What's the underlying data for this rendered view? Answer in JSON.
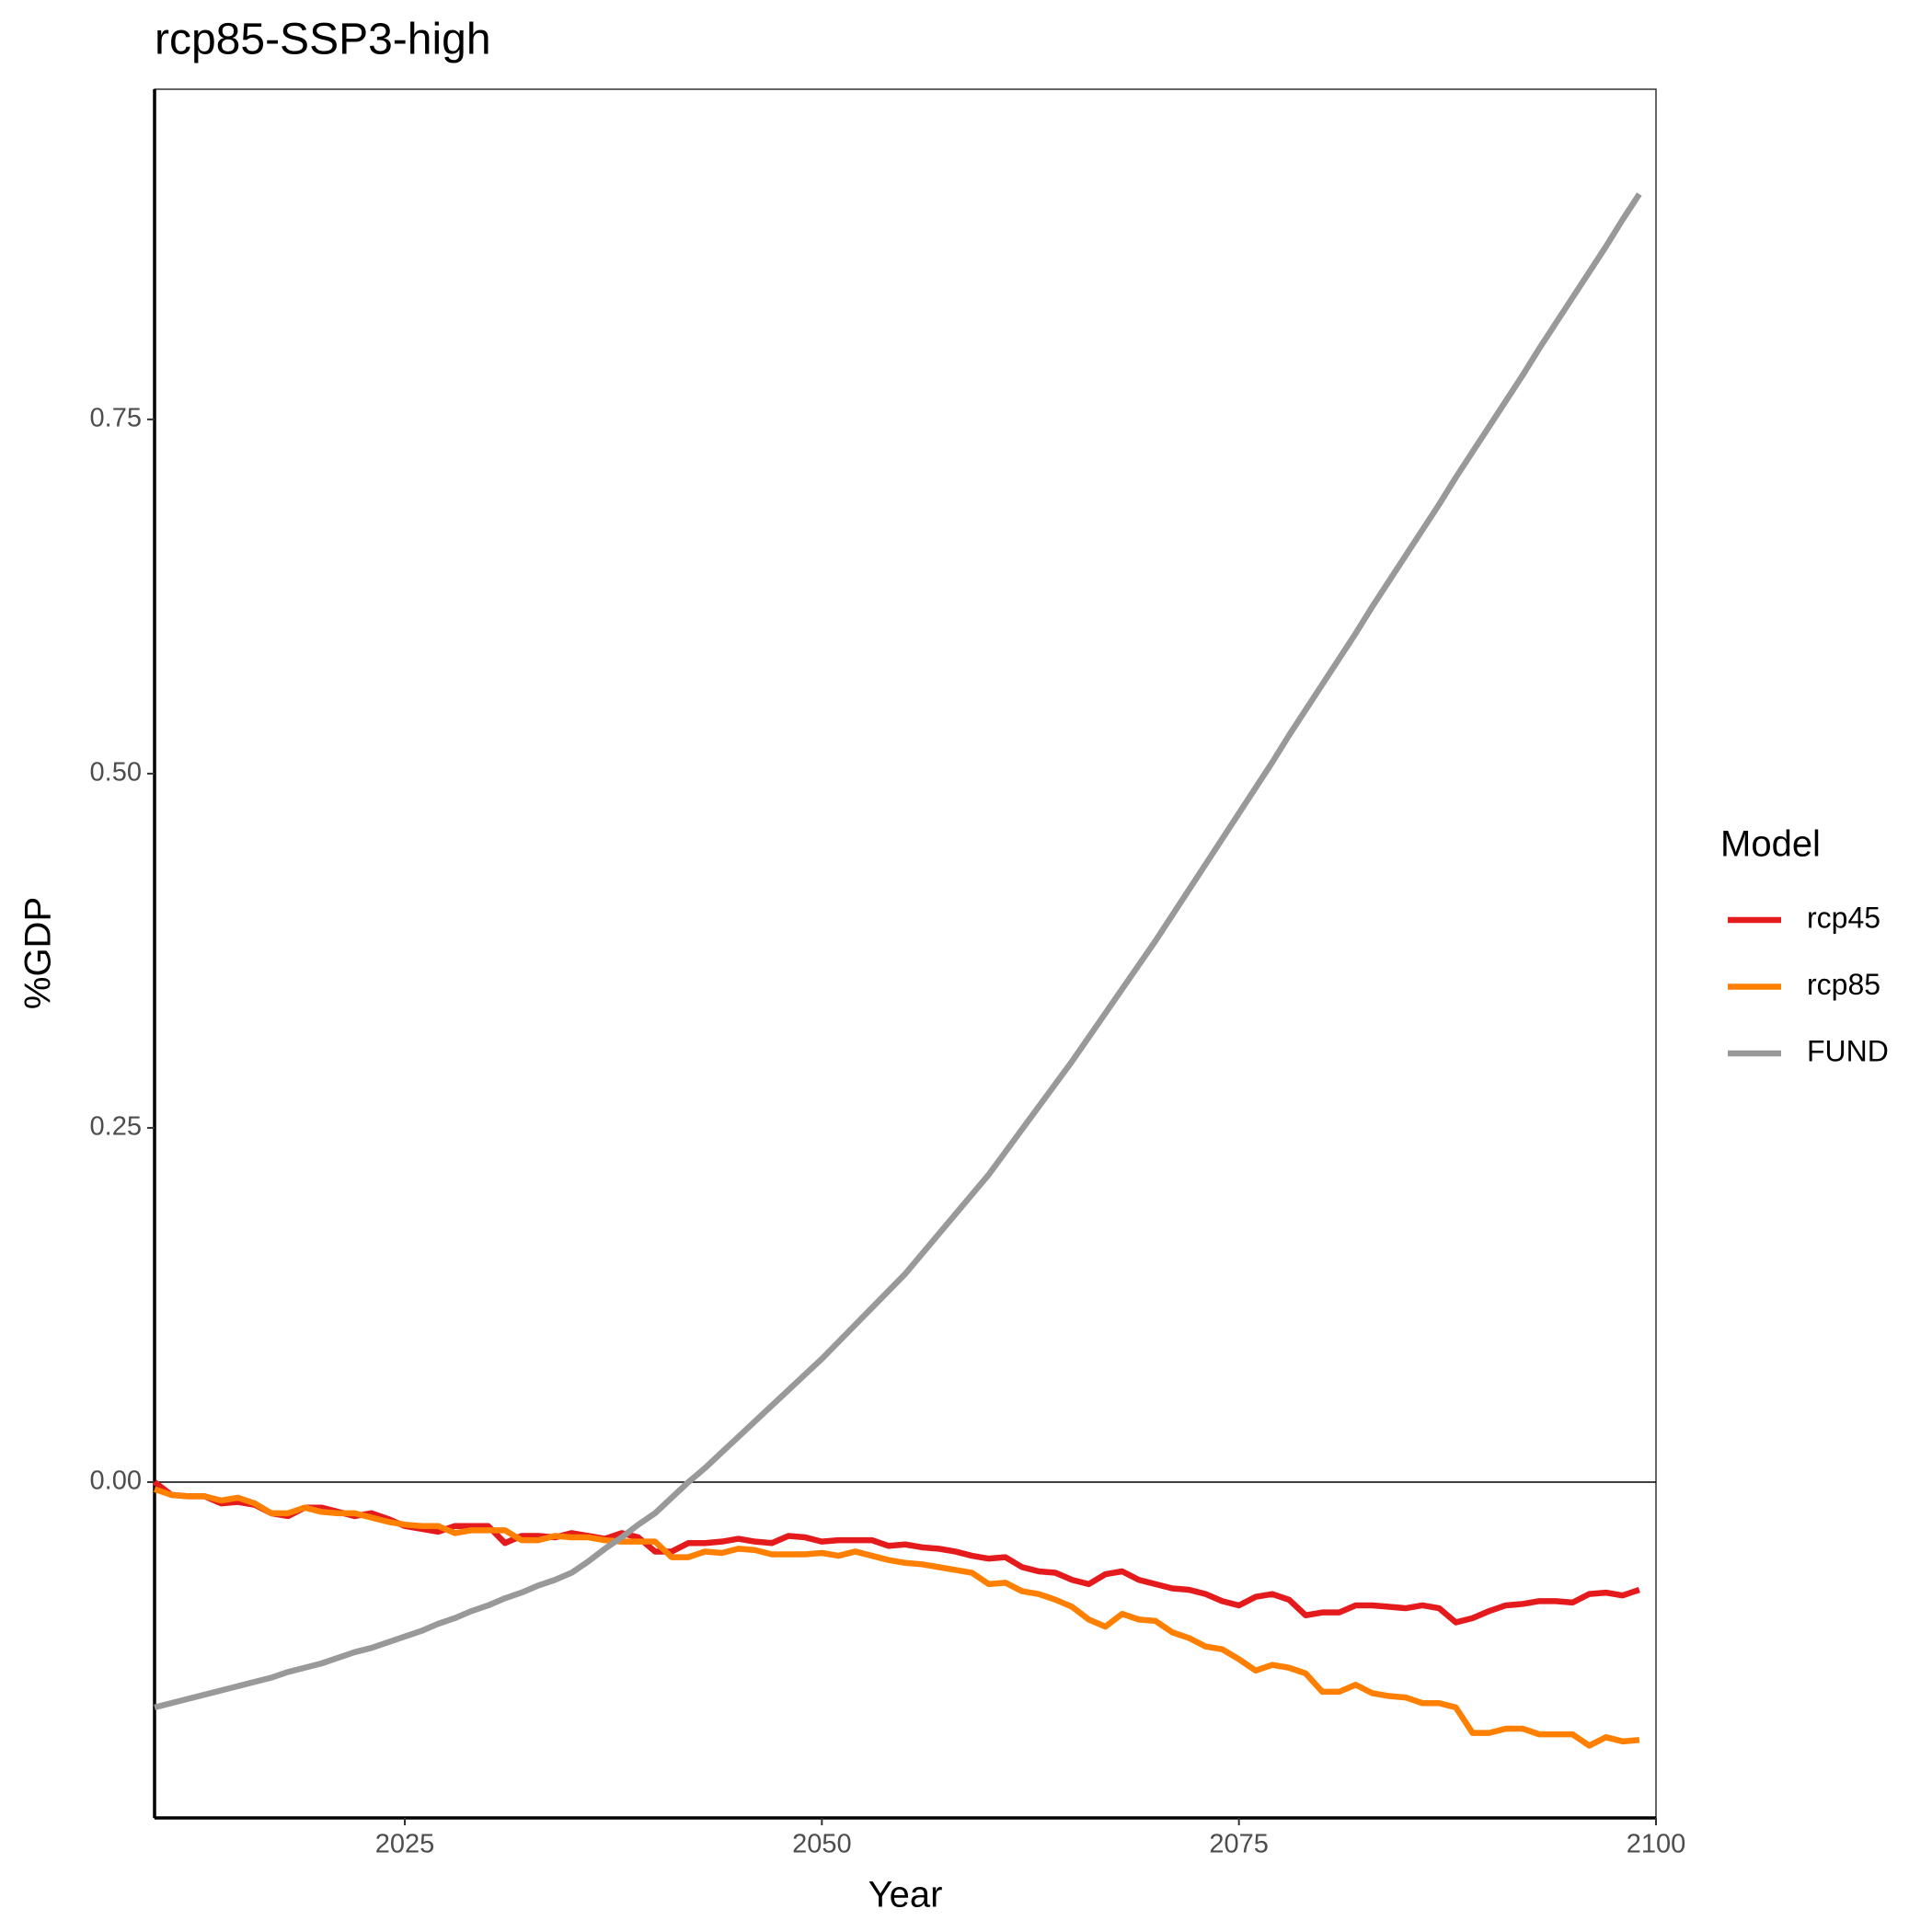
{
  "chart_data": {
    "type": "line",
    "title": "rcp85-SSP3-high",
    "x_label": "Year",
    "y_label": "%GDP",
    "legend_title": "Model",
    "legend_position": "right",
    "grid": false,
    "hline": 0,
    "x": [
      2010,
      2011,
      2012,
      2013,
      2014,
      2015,
      2016,
      2017,
      2018,
      2019,
      2020,
      2021,
      2022,
      2023,
      2024,
      2025,
      2026,
      2027,
      2028,
      2029,
      2030,
      2031,
      2032,
      2033,
      2034,
      2035,
      2036,
      2037,
      2038,
      2039,
      2040,
      2041,
      2042,
      2043,
      2044,
      2045,
      2046,
      2047,
      2048,
      2049,
      2050,
      2051,
      2052,
      2053,
      2054,
      2055,
      2056,
      2057,
      2058,
      2059,
      2060,
      2061,
      2062,
      2063,
      2064,
      2065,
      2066,
      2067,
      2068,
      2069,
      2070,
      2071,
      2072,
      2073,
      2074,
      2075,
      2076,
      2077,
      2078,
      2079,
      2080,
      2081,
      2082,
      2083,
      2084,
      2085,
      2086,
      2087,
      2088,
      2089,
      2090,
      2091,
      2092,
      2093,
      2094,
      2095,
      2096,
      2097,
      2098,
      2099
    ],
    "xlim": [
      2010,
      2100
    ],
    "xticks": [
      2025,
      2050,
      2075,
      2100
    ],
    "ylim": [
      -0.237,
      0.983
    ],
    "yticks": [
      {
        "value": 0,
        "label": "0.00"
      },
      0.25,
      {
        "value": 0.5,
        "label": "0.50"
      },
      0.75
    ],
    "series": [
      {
        "name": "rcp45",
        "color": "#e41a1c",
        "values": [
          0.0,
          -0.009,
          -0.01,
          -0.01,
          -0.015,
          -0.014,
          -0.016,
          -0.022,
          -0.024,
          -0.018,
          -0.018,
          -0.021,
          -0.024,
          -0.022,
          -0.026,
          -0.031,
          -0.033,
          -0.035,
          -0.031,
          -0.031,
          -0.031,
          -0.043,
          -0.038,
          -0.038,
          -0.039,
          -0.036,
          -0.038,
          -0.04,
          -0.036,
          -0.039,
          -0.049,
          -0.049,
          -0.043,
          -0.043,
          -0.042,
          -0.04,
          -0.042,
          -0.043,
          -0.038,
          -0.039,
          -0.042,
          -0.041,
          -0.041,
          -0.041,
          -0.045,
          -0.044,
          -0.046,
          -0.047,
          -0.049,
          -0.052,
          -0.054,
          -0.053,
          -0.06,
          -0.063,
          -0.064,
          -0.069,
          -0.072,
          -0.065,
          -0.063,
          -0.069,
          -0.072,
          -0.075,
          -0.076,
          -0.079,
          -0.084,
          -0.087,
          -0.081,
          -0.079,
          -0.083,
          -0.094,
          -0.092,
          -0.092,
          -0.087,
          -0.087,
          -0.088,
          -0.089,
          -0.087,
          -0.089,
          -0.099,
          -0.096,
          -0.091,
          -0.087,
          -0.086,
          -0.084,
          -0.084,
          -0.085,
          -0.079,
          -0.078,
          -0.08,
          -0.076
        ]
      },
      {
        "name": "rcp85",
        "color": "#ff7f00",
        "values": [
          -0.005,
          -0.009,
          -0.01,
          -0.01,
          -0.013,
          -0.011,
          -0.015,
          -0.022,
          -0.022,
          -0.018,
          -0.021,
          -0.022,
          -0.022,
          -0.025,
          -0.028,
          -0.03,
          -0.031,
          -0.031,
          -0.036,
          -0.034,
          -0.034,
          -0.034,
          -0.041,
          -0.041,
          -0.038,
          -0.039,
          -0.039,
          -0.041,
          -0.042,
          -0.042,
          -0.042,
          -0.053,
          -0.053,
          -0.049,
          -0.05,
          -0.047,
          -0.048,
          -0.051,
          -0.051,
          -0.051,
          -0.05,
          -0.052,
          -0.049,
          -0.052,
          -0.055,
          -0.057,
          -0.058,
          -0.06,
          -0.062,
          -0.064,
          -0.072,
          -0.071,
          -0.077,
          -0.079,
          -0.083,
          -0.088,
          -0.097,
          -0.102,
          -0.093,
          -0.097,
          -0.098,
          -0.106,
          -0.11,
          -0.116,
          -0.118,
          -0.125,
          -0.133,
          -0.129,
          -0.131,
          -0.135,
          -0.148,
          -0.148,
          -0.143,
          -0.149,
          -0.151,
          -0.152,
          -0.156,
          -0.156,
          -0.159,
          -0.177,
          -0.177,
          -0.174,
          -0.174,
          -0.178,
          -0.178,
          -0.178,
          -0.186,
          -0.18,
          -0.183,
          -0.182
        ]
      },
      {
        "name": "FUND",
        "color": "#999999",
        "values": [
          -0.159,
          -0.156,
          -0.153,
          -0.15,
          -0.147,
          -0.144,
          -0.141,
          -0.138,
          -0.134,
          -0.131,
          -0.128,
          -0.124,
          -0.12,
          -0.117,
          -0.113,
          -0.109,
          -0.105,
          -0.1,
          -0.096,
          -0.091,
          -0.087,
          -0.082,
          -0.078,
          -0.073,
          -0.069,
          -0.064,
          -0.056,
          -0.047,
          -0.039,
          -0.03,
          -0.022,
          -0.011,
          0.0,
          0.01,
          0.021,
          0.032,
          0.043,
          0.054,
          0.065,
          0.076,
          0.087,
          0.099,
          0.111,
          0.123,
          0.135,
          0.147,
          0.161,
          0.175,
          0.189,
          0.203,
          0.217,
          0.233,
          0.249,
          0.265,
          0.281,
          0.297,
          0.314,
          0.331,
          0.348,
          0.365,
          0.382,
          0.4,
          0.418,
          0.436,
          0.454,
          0.472,
          0.49,
          0.508,
          0.527,
          0.545,
          0.563,
          0.581,
          0.599,
          0.618,
          0.636,
          0.654,
          0.672,
          0.69,
          0.709,
          0.727,
          0.745,
          0.763,
          0.781,
          0.8,
          0.818,
          0.836,
          0.854,
          0.872,
          0.891,
          0.909
        ]
      }
    ]
  }
}
